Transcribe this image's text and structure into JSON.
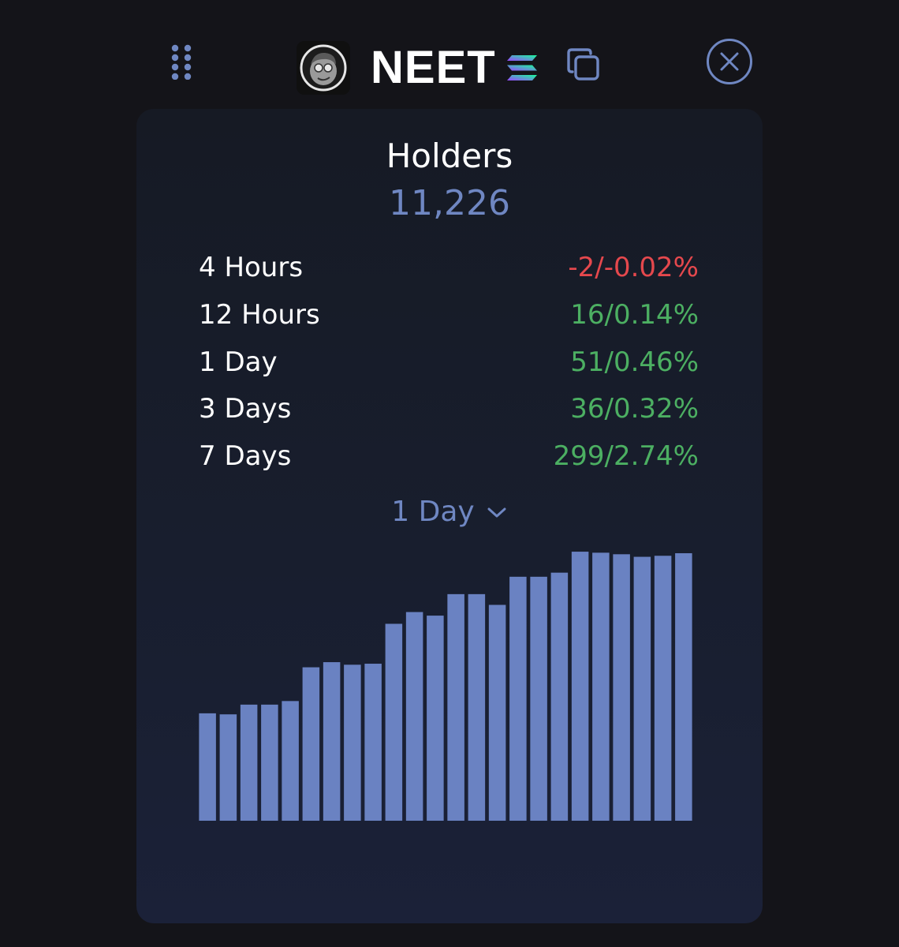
{
  "header": {
    "token_name": "NEET",
    "icons": {
      "drag": "drag-handle-icon",
      "logo": "token-logo",
      "chain": "solana-icon",
      "copy": "copy-icon",
      "close": "close-icon"
    }
  },
  "metric": {
    "title": "Holders",
    "value": "11,226"
  },
  "stats": [
    {
      "label": "4 Hours",
      "value": "-2/-0.02%",
      "trend": "down"
    },
    {
      "label": "12 Hours",
      "value": "16/0.14%",
      "trend": "up"
    },
    {
      "label": "1 Day",
      "value": "51/0.46%",
      "trend": "up"
    },
    {
      "label": "3 Days",
      "value": "36/0.32%",
      "trend": "up"
    },
    {
      "label": "7 Days",
      "value": "299/2.74%",
      "trend": "up"
    }
  ],
  "range_select": {
    "value": "1 Day"
  },
  "colors": {
    "accent": "#6f87c2",
    "bar": "#6a82c2",
    "positive": "#4caf62",
    "negative": "#e5484d"
  },
  "chart_data": {
    "type": "bar",
    "values": [
      10960,
      10958,
      10977,
      10977,
      10984,
      11050,
      11060,
      11055,
      11057,
      11135,
      11158,
      11151,
      11193,
      11193,
      11172,
      11227,
      11227,
      11235,
      11276,
      11274,
      11271,
      11266,
      11268,
      11273
    ],
    "ylim": [
      10750,
      11290
    ],
    "xlabel": "",
    "ylabel": "",
    "grid": false,
    "legend": "none"
  }
}
